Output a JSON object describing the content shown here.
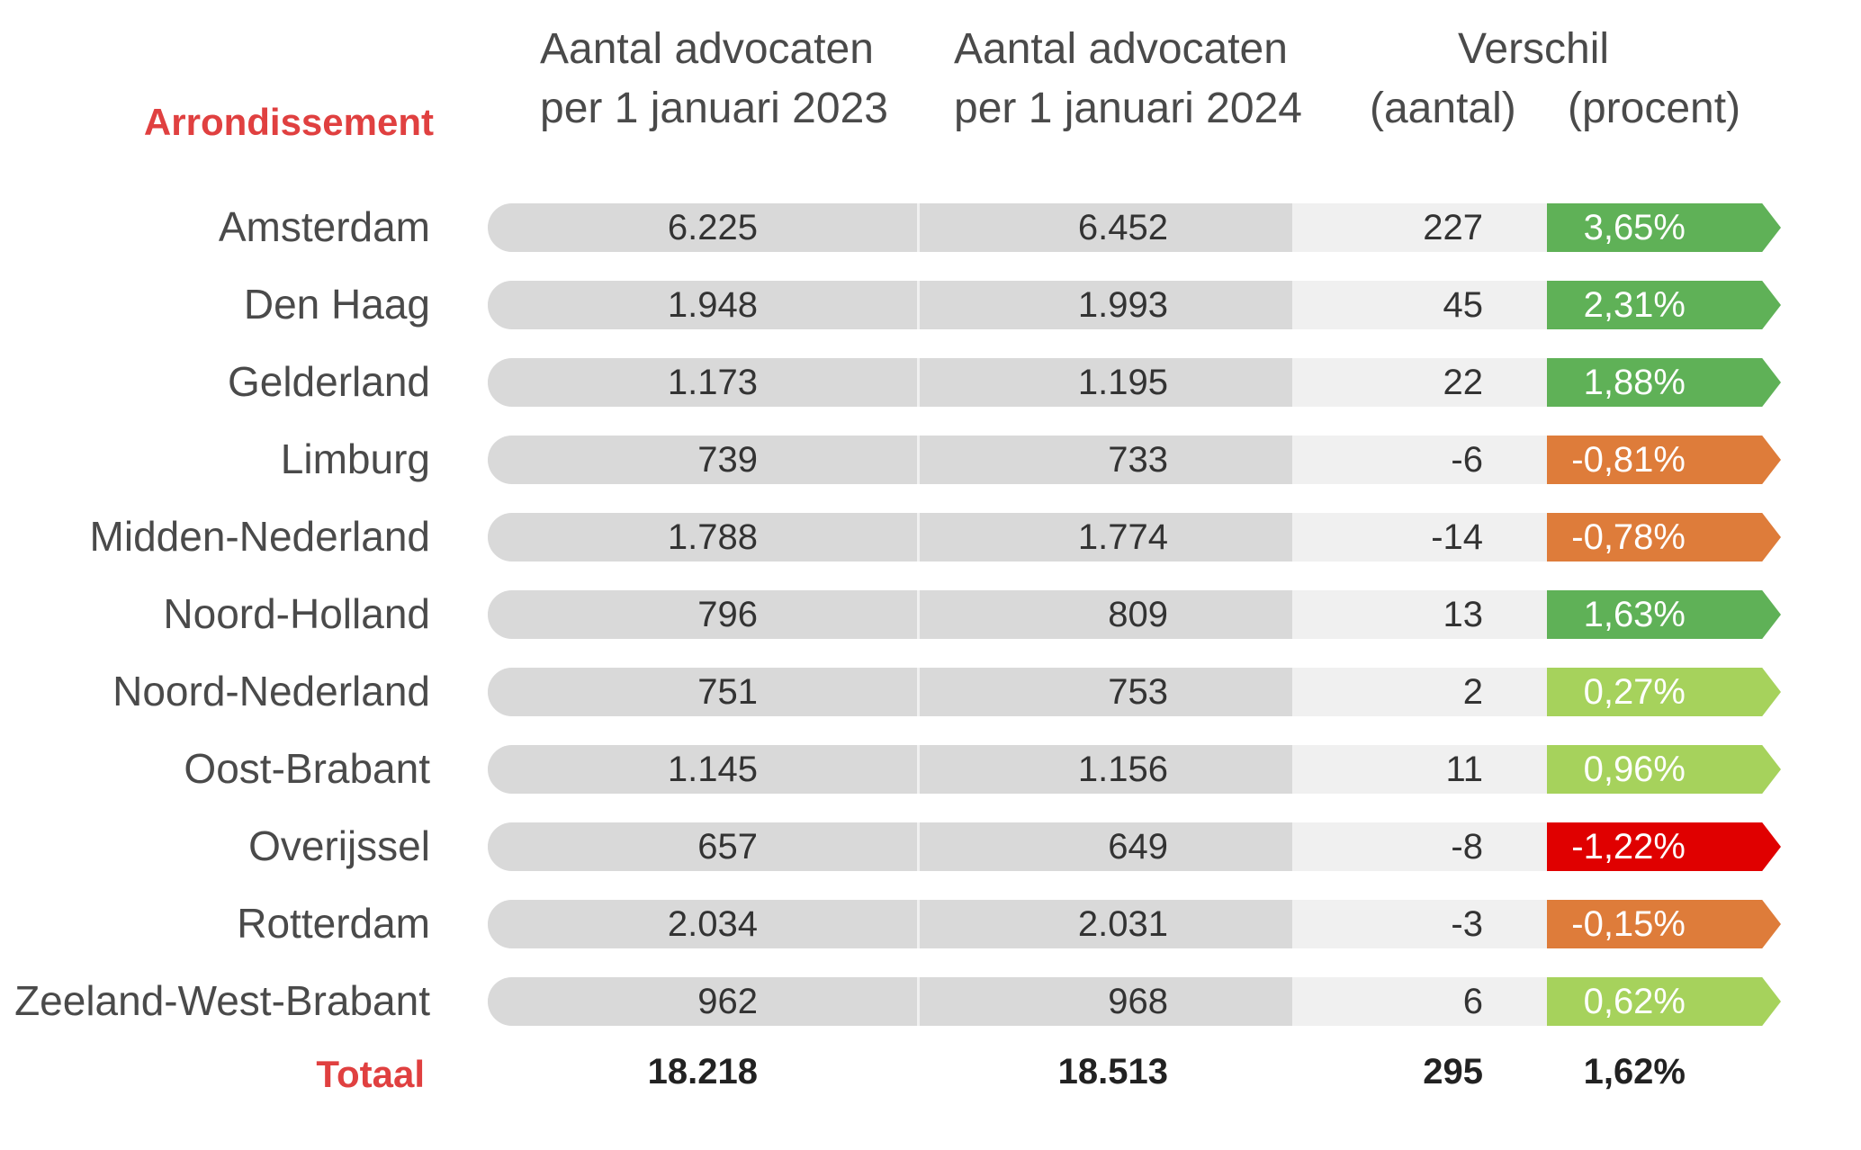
{
  "chart_data": {
    "type": "table",
    "title": "",
    "columns": {
      "label": "Arrondissement",
      "y2023_line1": "Aantal advocaten",
      "y2023_line2": "per 1 januari 2023",
      "y2024_line1": "Aantal advocaten",
      "y2024_line2": "per 1 januari 2024",
      "diff_title": "Verschil",
      "diff_count": "(aantal)",
      "diff_pct": "(procent)"
    },
    "rows": [
      {
        "name": "Amsterdam",
        "y2023": "6.225",
        "y2024": "6.452",
        "diff": "227",
        "pct": "3,65%",
        "pct_value": 3.65
      },
      {
        "name": "Den Haag",
        "y2023": "1.948",
        "y2024": "1.993",
        "diff": "45",
        "pct": "2,31%",
        "pct_value": 2.31
      },
      {
        "name": "Gelderland",
        "y2023": "1.173",
        "y2024": "1.195",
        "diff": "22",
        "pct": "1,88%",
        "pct_value": 1.88
      },
      {
        "name": "Limburg",
        "y2023": "739",
        "y2024": "733",
        "diff": "-6",
        "pct": "-0,81%",
        "pct_value": -0.81
      },
      {
        "name": "Midden-Nederland",
        "y2023": "1.788",
        "y2024": "1.774",
        "diff": "-14",
        "pct": "-0,78%",
        "pct_value": -0.78
      },
      {
        "name": "Noord-Holland",
        "y2023": "796",
        "y2024": "809",
        "diff": "13",
        "pct": "1,63%",
        "pct_value": 1.63
      },
      {
        "name": "Noord-Nederland",
        "y2023": "751",
        "y2024": "753",
        "diff": "2",
        "pct": "0,27%",
        "pct_value": 0.27
      },
      {
        "name": "Oost-Brabant",
        "y2023": "1.145",
        "y2024": "1.156",
        "diff": "11",
        "pct": "0,96%",
        "pct_value": 0.96
      },
      {
        "name": "Overijssel",
        "y2023": "657",
        "y2024": "649",
        "diff": "-8",
        "pct": "-1,22%",
        "pct_value": -1.22
      },
      {
        "name": "Rotterdam",
        "y2023": "2.034",
        "y2024": "2.031",
        "diff": "-3",
        "pct": "-0,15%",
        "pct_value": -0.15
      },
      {
        "name": "Zeeland-West-Brabant",
        "y2023": "962",
        "y2024": "968",
        "diff": "6",
        "pct": "0,62%",
        "pct_value": 0.62
      }
    ],
    "total": {
      "label": "Totaal",
      "y2023": "18.218",
      "y2024": "18.513",
      "diff": "295",
      "pct": "1,62%"
    }
  },
  "colors": {
    "strong_growth": "#5fb157",
    "mild_growth": "#a6d25c",
    "mild_decline": "#de7c3a",
    "strong_decline": "#e00000",
    "accent": "#e04040"
  }
}
